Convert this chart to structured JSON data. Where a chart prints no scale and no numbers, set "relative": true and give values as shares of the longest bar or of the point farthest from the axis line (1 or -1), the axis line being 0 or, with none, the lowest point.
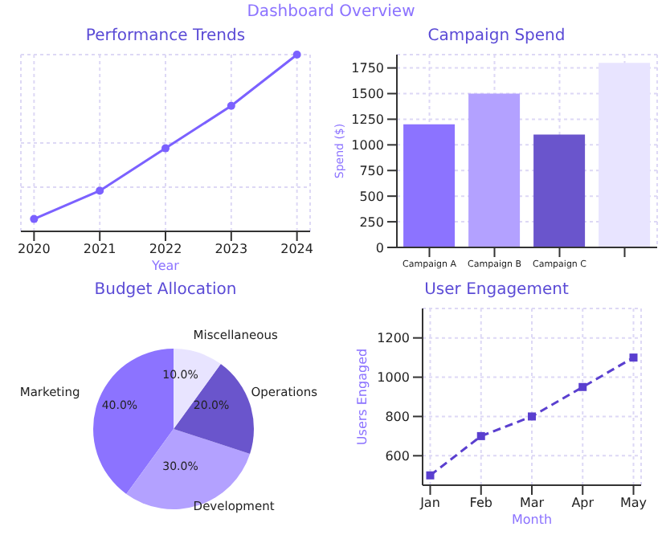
{
  "chart_data": [
    {
      "type": "line",
      "title": "Performance Trends",
      "xlabel": "Year",
      "annotations": [
        "Dashboard Overview"
      ],
      "relative": true,
      "x": [
        2020,
        2021,
        2022,
        2023,
        2024
      ],
      "xlim": [
        2019.8,
        2024.2
      ],
      "xticks": [
        2020,
        2021,
        2022,
        2023,
        2024
      ],
      "grid": true,
      "marker": "circle",
      "line_style": "solid",
      "series": [
        {
          "color": "#7b61ff",
          "values": [
            0.07,
            0.23,
            0.47,
            0.71,
            1
          ]
        }
      ]
    },
    {
      "type": "bar",
      "title": "Campaign Spend",
      "ylabel": "Spend ($)",
      "categories": [
        "Campaign A",
        "Campaign B",
        "Campaign C",
        null
      ],
      "values": [
        1200,
        1500,
        1100,
        1800
      ],
      "colors": [
        "#8c73ff",
        "#b3a1ff",
        "#6a55cc",
        "#e8e4ff"
      ],
      "ylim": [
        0,
        1880
      ],
      "yticks": [
        0,
        250,
        500,
        750,
        1000,
        1250,
        1500,
        1750
      ],
      "grid": true
    },
    {
      "type": "pie",
      "title": "Budget Allocation",
      "categories": [
        "Marketing",
        "Development",
        "Operations",
        "Miscellaneous"
      ],
      "values": [
        40,
        30,
        20,
        10
      ],
      "value_labels": [
        "40.0%",
        "30.0%",
        "20.0%",
        "10.0%"
      ],
      "colors": [
        "#8c73ff",
        "#b3a1ff",
        "#6a55cc",
        "#e8e4ff"
      ]
    },
    {
      "type": "line",
      "title": "User Engagement",
      "xlabel": "Month",
      "ylabel": "Users Engaged",
      "categories": [
        "Jan",
        "Feb",
        "Mar",
        "Apr",
        "May"
      ],
      "ylim": [
        450,
        1350
      ],
      "yticks": [
        600,
        800,
        1000,
        1200
      ],
      "grid": true,
      "marker": "square",
      "line_style": "dashed",
      "series": [
        {
          "color": "#5a3fcf",
          "values": [
            500,
            700,
            800,
            950,
            1100
          ]
        }
      ]
    }
  ]
}
